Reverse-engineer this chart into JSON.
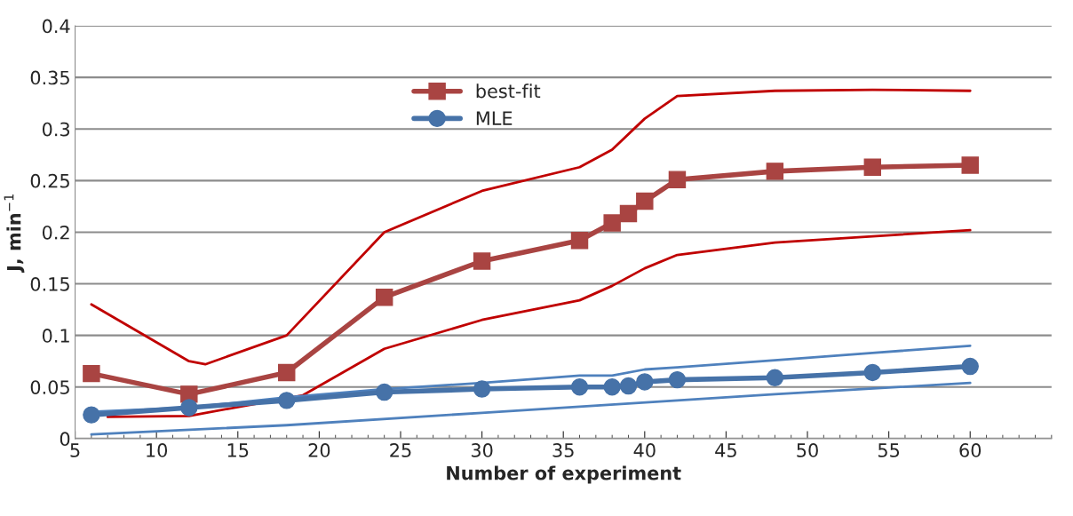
{
  "chart_data": {
    "type": "line",
    "xlabel": "Number of experiment",
    "ylabel": "J, min$^{−1}$",
    "x": [
      6,
      12,
      18,
      24,
      30,
      36,
      38,
      39,
      40,
      42,
      48,
      54,
      60
    ],
    "xlim": [
      5,
      65
    ],
    "xticks": [
      5,
      10,
      15,
      20,
      25,
      30,
      35,
      40,
      45,
      50,
      55,
      60
    ],
    "ylim": [
      0,
      0.4
    ],
    "yticks": [
      0,
      0.05,
      0.1,
      0.15,
      0.2,
      0.25,
      0.3,
      0.35,
      0.4
    ],
    "grid": "y",
    "legend": "top left",
    "series": [
      {
        "name": "best-fit",
        "color": "#a94442",
        "marker": "square",
        "values": [
          0.063,
          0.043,
          0.064,
          0.137,
          0.172,
          0.192,
          0.209,
          0.218,
          0.23,
          0.251,
          0.259,
          0.263,
          0.265
        ]
      },
      {
        "name": "MLE",
        "color": "#4672a8",
        "marker": "circle",
        "values": [
          0.023,
          0.03,
          0.037,
          0.045,
          0.048,
          0.05,
          0.05,
          0.051,
          0.055,
          0.057,
          0.059,
          0.064,
          0.07
        ]
      },
      {
        "color": "#c00000",
        "marker": "none",
        "x": [
          6,
          12,
          13,
          18,
          24,
          30,
          36,
          38,
          40,
          42,
          48,
          54,
          60
        ],
        "values": [
          0.13,
          0.075,
          0.072,
          0.1,
          0.2,
          0.24,
          0.263,
          0.28,
          0.31,
          0.332,
          0.337,
          0.338,
          0.337
        ]
      },
      {
        "color": "#c00000",
        "marker": "none",
        "x": [
          7,
          12,
          19,
          24,
          30,
          36,
          38,
          40,
          42,
          48,
          54,
          60
        ],
        "values": [
          0.021,
          0.022,
          0.042,
          0.087,
          0.115,
          0.134,
          0.148,
          0.165,
          0.178,
          0.19,
          0.196,
          0.202
        ]
      },
      {
        "color": "#4f81bd",
        "marker": "none",
        "x": [
          6,
          12,
          18,
          24,
          30,
          36,
          38,
          40,
          42,
          48,
          54,
          60
        ],
        "values": [
          0.026,
          0.03,
          0.04,
          0.048,
          0.054,
          0.061,
          0.061,
          0.067,
          0.069,
          0.076,
          0.083,
          0.09
        ]
      },
      {
        "color": "#4f81bd",
        "marker": "none",
        "x": [
          6,
          18,
          30,
          42,
          48,
          60
        ],
        "values": [
          0.004,
          0.013,
          0.025,
          0.037,
          0.043,
          0.054
        ]
      }
    ]
  }
}
